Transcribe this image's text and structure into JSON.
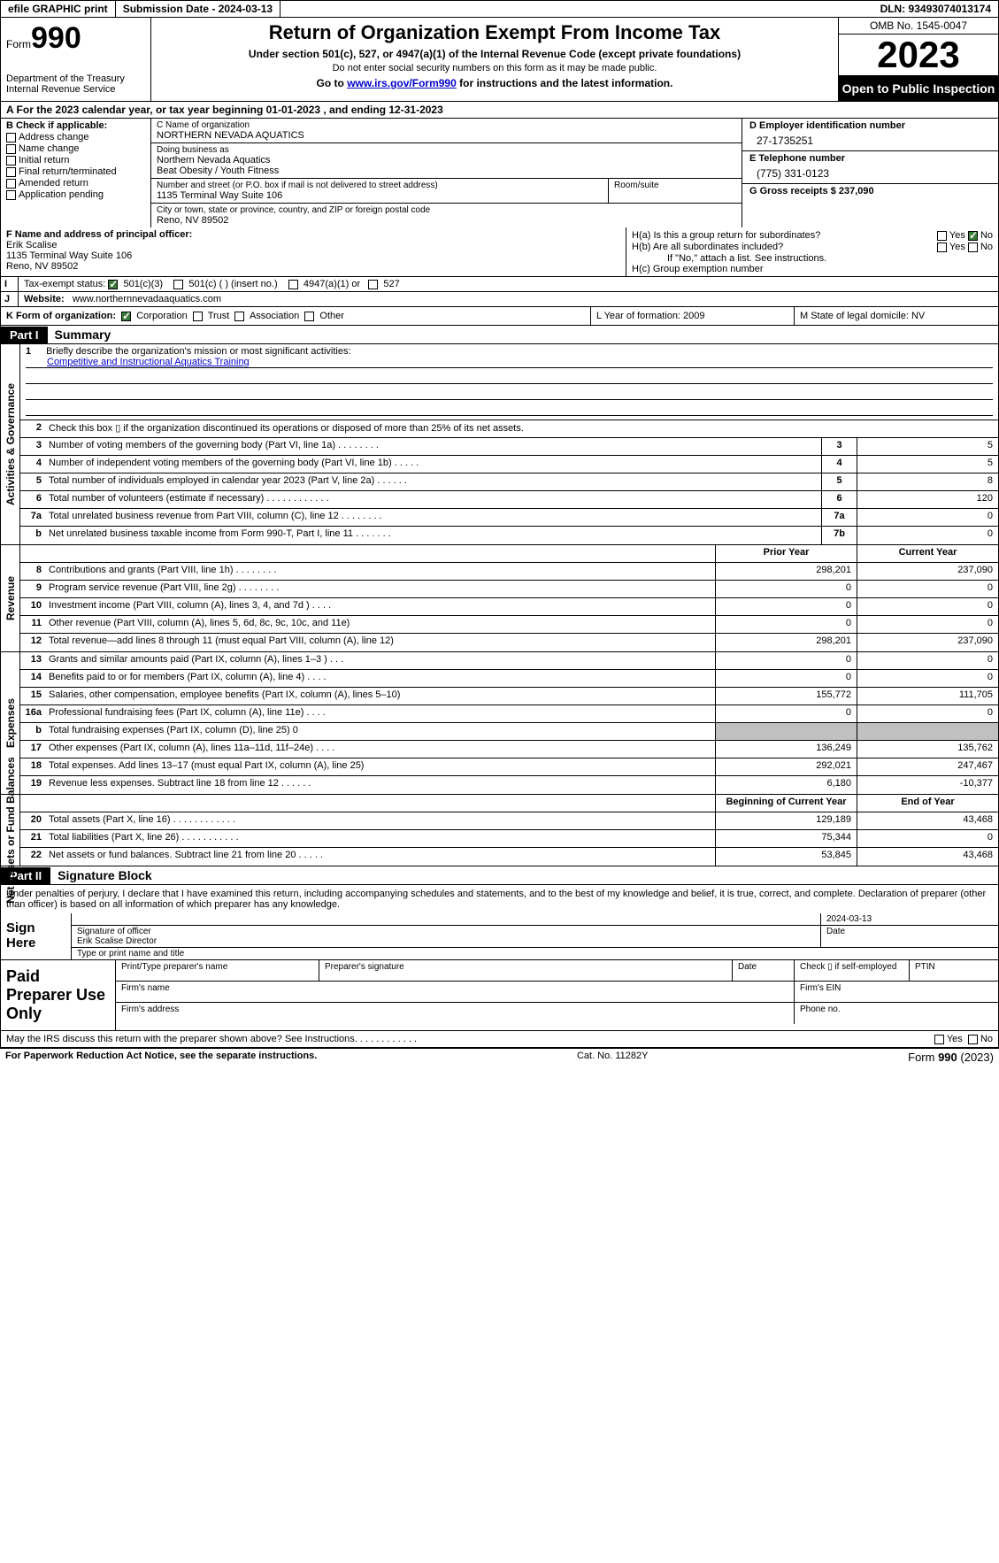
{
  "topbar": {
    "efile": "efile GRAPHIC print",
    "submission": "Submission Date - 2024-03-13",
    "dln": "DLN: 93493074013174"
  },
  "header": {
    "form_prefix": "Form",
    "form_number": "990",
    "dept": "Department of the Treasury",
    "irs": "Internal Revenue Service",
    "title": "Return of Organization Exempt From Income Tax",
    "subtitle": "Under section 501(c), 527, or 4947(a)(1) of the Internal Revenue Code (except private foundations)",
    "ssn_note": "Do not enter social security numbers on this form as it may be made public.",
    "goto_prefix": "Go to ",
    "goto_url": "www.irs.gov/Form990",
    "goto_suffix": " for instructions and the latest information.",
    "omb": "OMB No. 1545-0047",
    "year": "2023",
    "open": "Open to Public Inspection"
  },
  "row_a": "A  For the 2023 calendar year, or tax year beginning 01-01-2023    , and ending 12-31-2023",
  "box_b": {
    "title": "B Check if applicable:",
    "opts": [
      "Address change",
      "Name change",
      "Initial return",
      "Final return/terminated",
      "Amended return",
      "Application pending"
    ]
  },
  "box_c": {
    "name_lbl": "C Name of organization",
    "name": "NORTHERN NEVADA AQUATICS",
    "dba_lbl": "Doing business as",
    "dba1": "Northern Nevada Aquatics",
    "dba2": "Beat Obesity / Youth Fitness",
    "addr_lbl": "Number and street (or P.O. box if mail is not delivered to street address)",
    "addr": "1135 Terminal Way Suite 106",
    "room_lbl": "Room/suite",
    "city_lbl": "City or town, state or province, country, and ZIP or foreign postal code",
    "city": "Reno, NV  89502"
  },
  "box_d": {
    "ein_lbl": "D Employer identification number",
    "ein": "27-1735251",
    "phone_lbl": "E Telephone number",
    "phone": "(775) 331-0123",
    "gross_lbl": "G Gross receipts $ 237,090"
  },
  "box_f": {
    "lbl": "F  Name and address of principal officer:",
    "name": "Erik Scalise",
    "addr1": "1135 Terminal Way Suite 106",
    "addr2": "Reno, NV  89502"
  },
  "box_h": {
    "ha": "H(a)  Is this a group return for subordinates?",
    "hb": "H(b)  Are all subordinates included?",
    "hb_note": "If \"No,\" attach a list. See instructions.",
    "hc": "H(c)  Group exemption number ",
    "yes": "Yes",
    "no": "No"
  },
  "row_i": {
    "lbl": "I",
    "txt": "Tax-exempt status:",
    "opts": [
      "501(c)(3)",
      "501(c) (  ) (insert no.)",
      "4947(a)(1) or",
      "527"
    ]
  },
  "row_j": {
    "lbl": "J",
    "txt": "Website: ",
    "url": "www.northernnevadaaquatics.com"
  },
  "row_k": {
    "k": "K Form of organization:",
    "opts": [
      "Corporation",
      "Trust",
      "Association",
      "Other"
    ],
    "l": "L Year of formation: 2009",
    "m": "M State of legal domicile: NV"
  },
  "part1": {
    "hdr": "Part I",
    "title": "Summary"
  },
  "mission": {
    "num": "1",
    "lbl": "Briefly describe the organization's mission or most significant activities:",
    "text": "Competitive and Instructional Aquatics Training"
  },
  "gov_lines": [
    {
      "n": "2",
      "d": "Check this box ▯ if the organization discontinued its operations or disposed of more than 25% of its net assets.",
      "box": "",
      "v": ""
    },
    {
      "n": "3",
      "d": "Number of voting members of the governing body (Part VI, line 1a)   .    .    .    .    .    .    .    .",
      "box": "3",
      "v": "5"
    },
    {
      "n": "4",
      "d": "Number of independent voting members of the governing body (Part VI, line 1b)   .    .    .    .    .",
      "box": "4",
      "v": "5"
    },
    {
      "n": "5",
      "d": "Total number of individuals employed in calendar year 2023 (Part V, line 2a)   .    .    .    .    .    .",
      "box": "5",
      "v": "8"
    },
    {
      "n": "6",
      "d": "Total number of volunteers (estimate if necessary)   .    .    .    .    .    .    .    .    .    .    .    .",
      "box": "6",
      "v": "120"
    },
    {
      "n": "7a",
      "d": "Total unrelated business revenue from Part VIII, column (C), line 12   .    .    .    .    .    .    .    .",
      "box": "7a",
      "v": "0"
    },
    {
      "n": "b",
      "d": "Net unrelated business taxable income from Form 990-T, Part I, line 11   .    .    .    .    .    .    .",
      "box": "7b",
      "v": "0"
    }
  ],
  "rev_hdr": {
    "prior": "Prior Year",
    "curr": "Current Year"
  },
  "rev_lines": [
    {
      "n": "8",
      "d": "Contributions and grants (Part VIII, line 1h)   .    .    .    .    .    .    .    .",
      "p": "298,201",
      "c": "237,090"
    },
    {
      "n": "9",
      "d": "Program service revenue (Part VIII, line 2g)   .    .    .    .    .    .    .    .",
      "p": "0",
      "c": "0"
    },
    {
      "n": "10",
      "d": "Investment income (Part VIII, column (A), lines 3, 4, and 7d )   .    .    .    .",
      "p": "0",
      "c": "0"
    },
    {
      "n": "11",
      "d": "Other revenue (Part VIII, column (A), lines 5, 6d, 8c, 9c, 10c, and 11e)",
      "p": "0",
      "c": "0"
    },
    {
      "n": "12",
      "d": "Total revenue—add lines 8 through 11 (must equal Part VIII, column (A), line 12)",
      "p": "298,201",
      "c": "237,090"
    }
  ],
  "exp_lines": [
    {
      "n": "13",
      "d": "Grants and similar amounts paid (Part IX, column (A), lines 1–3 )   .    .    .",
      "p": "0",
      "c": "0"
    },
    {
      "n": "14",
      "d": "Benefits paid to or for members (Part IX, column (A), line 4)   .    .    .    .",
      "p": "0",
      "c": "0"
    },
    {
      "n": "15",
      "d": "Salaries, other compensation, employee benefits (Part IX, column (A), lines 5–10)",
      "p": "155,772",
      "c": "111,705"
    },
    {
      "n": "16a",
      "d": "Professional fundraising fees (Part IX, column (A), line 11e)   .    .    .    .",
      "p": "0",
      "c": "0"
    },
    {
      "n": "b",
      "d": "Total fundraising expenses (Part IX, column (D), line 25) 0",
      "p": "grey",
      "c": "grey"
    },
    {
      "n": "17",
      "d": "Other expenses (Part IX, column (A), lines 11a–11d, 11f–24e)   .    .    .    .",
      "p": "136,249",
      "c": "135,762"
    },
    {
      "n": "18",
      "d": "Total expenses. Add lines 13–17 (must equal Part IX, column (A), line 25)",
      "p": "292,021",
      "c": "247,467"
    },
    {
      "n": "19",
      "d": "Revenue less expenses. Subtract line 18 from line 12   .    .    .    .    .    .",
      "p": "6,180",
      "c": "-10,377"
    }
  ],
  "na_hdr": {
    "beg": "Beginning of Current Year",
    "end": "End of Year"
  },
  "na_lines": [
    {
      "n": "20",
      "d": "Total assets (Part X, line 16)   .    .    .    .    .    .    .    .    .    .    .    .",
      "p": "129,189",
      "c": "43,468"
    },
    {
      "n": "21",
      "d": "Total liabilities (Part X, line 26)   .    .    .    .    .    .    .    .    .    .    .",
      "p": "75,344",
      "c": "0"
    },
    {
      "n": "22",
      "d": "Net assets or fund balances. Subtract line 21 from line 20   .    .    .    .    .",
      "p": "53,845",
      "c": "43,468"
    }
  ],
  "part2": {
    "hdr": "Part II",
    "title": "Signature Block"
  },
  "sig_decl": "Under penalties of perjury, I declare that I have examined this return, including accompanying schedules and statements, and to the best of my knowledge and belief, it is true, correct, and complete. Declaration of preparer (other than officer) is based on all information of which preparer has any knowledge.",
  "sign": {
    "here": "Sign Here",
    "date": "2024-03-13",
    "sig_lbl": "Signature of officer",
    "name": "Erik Scalise  Director",
    "name_lbl": "Type or print name and title",
    "date_lbl": "Date"
  },
  "prep": {
    "title": "Paid Preparer Use Only",
    "c1": "Print/Type preparer's name",
    "c2": "Preparer's signature",
    "c3": "Date",
    "c4": "Check ▯ if self-employed",
    "c5": "PTIN",
    "f1": "Firm's name",
    "f2": "Firm's EIN",
    "f3": "Firm's address",
    "f4": "Phone no."
  },
  "discuss": "May the IRS discuss this return with the preparer shown above? See Instructions.   .    .    .    .    .    .    .    .    .    .    .",
  "footer": {
    "l": "For Paperwork Reduction Act Notice, see the separate instructions.",
    "m": "Cat. No. 11282Y",
    "r_prefix": "Form ",
    "r_form": "990",
    "r_suffix": " (2023)"
  }
}
